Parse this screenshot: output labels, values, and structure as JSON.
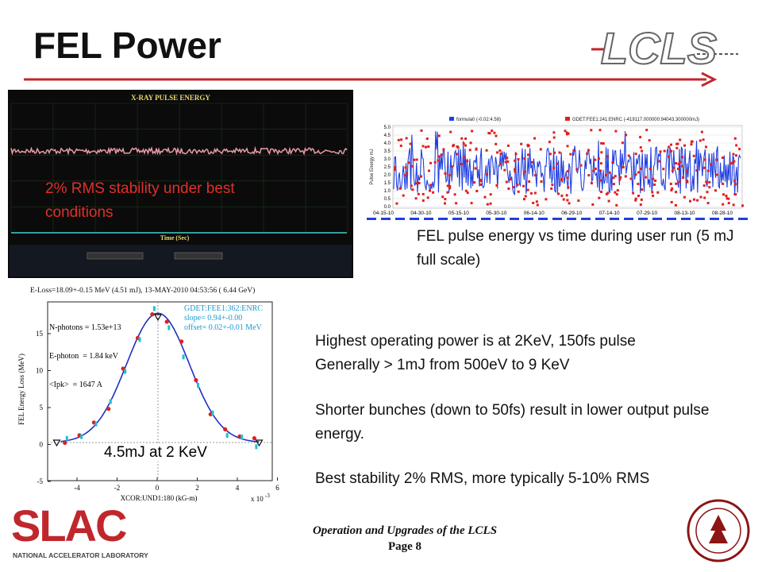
{
  "header": {
    "title": "FEL Power",
    "logo": "LCLS"
  },
  "figures": [
    {
      "title": "X-RAY PULSE ENERGY",
      "x_label": "Time (Sec)",
      "overlay": "2% RMS stability under best conditions"
    },
    {
      "legend": [
        "formula0 (-0.02:4.58)",
        "GDET:FEE1:241:ENRC (-419117.000000:94043.300000mJ)"
      ],
      "y_label": "Pulse Energy mJ",
      "yticks": [
        "5.0",
        "4.5",
        "4.0",
        "3.5",
        "3.0",
        "2.5",
        "2.0",
        "1.5",
        "1.0",
        "0.5",
        "0.0"
      ],
      "xticks": [
        "04-15-10",
        "04-30-10",
        "05-15-10",
        "05-30-10",
        "06-14-10",
        "06-29-10",
        "07-14-10",
        "07-29-10",
        "08-13-10",
        "08-28-10"
      ],
      "caption": "FEL pulse energy vs time during user run (5 mJ full scale)"
    },
    {
      "title": "E-Loss=18.09+-0.15 MeV (4.51 mJ), 13-MAY-2010 04:53:56 ( 6.44 GeV)",
      "info": [
        "N-photons = 1.53e+13",
        "E-photon  = 1.84 keV",
        "<Ipk>  = 1647 A"
      ],
      "fit": [
        "GDET:FEE1:362:ENRC",
        "slope= 0.94+-0.00",
        "offset= 0.02+-0.01 MeV"
      ],
      "y_label": "FEL Energy Loss (MeV)",
      "x_label": "XCOR:UND1:180 (kG-m)",
      "x_scale": "x 10",
      "x_exponent": "-3",
      "yticks": [
        "15",
        "10",
        "5",
        "0",
        "-5"
      ],
      "xticks": [
        "-4",
        "-2",
        "0",
        "2",
        "4",
        "6"
      ],
      "overlay": "4.5mJ at 2 KeV"
    }
  ],
  "body": [
    "Highest operating power is at 2KeV, 150fs pulse",
    "Generally > 1mJ from 500eV to 9 KeV",
    "Shorter bunches (down to 50fs) result in lower output pulse energy.",
    "Best stability 2% RMS, more typically 5-10% RMS"
  ],
  "footer": {
    "lines": [
      "Operation and Upgrades of the LCLS",
      "Page 8"
    ],
    "lab": "SLAC",
    "lab_full": "NATIONAL ACCELERATOR LABORATORY"
  }
}
